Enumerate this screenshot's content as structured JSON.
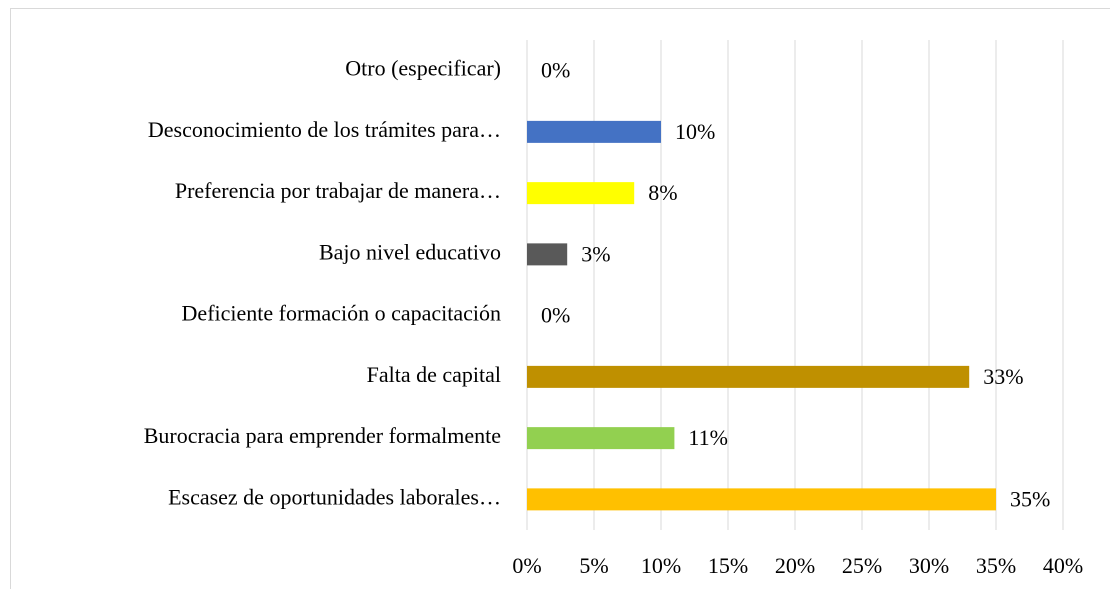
{
  "chart_data": {
    "type": "bar",
    "orientation": "horizontal",
    "categories": [
      "Otro (especificar)",
      "Desconocimiento de los trámites para…",
      "Preferencia por trabajar de manera…",
      "Bajo nivel educativo",
      "Deficiente formación o capacitación",
      "Falta de capital",
      "Burocracia para emprender formalmente",
      "Escasez de oportunidades laborales…"
    ],
    "values": [
      0,
      10,
      8,
      3,
      0,
      33,
      11,
      35
    ],
    "value_labels": [
      "0%",
      "10%",
      "8%",
      "3%",
      "0%",
      "33%",
      "11%",
      "35%"
    ],
    "colors": [
      null,
      "#4472c4",
      "#ffff00",
      "#595959",
      null,
      "#bf9000",
      "#92d050",
      "#ffc000"
    ],
    "xlim": [
      0,
      40
    ],
    "xticks": [
      {
        "value": 0,
        "label": "0%"
      },
      {
        "value": 5,
        "label": "5%"
      },
      {
        "value": 10,
        "label": "10%"
      },
      {
        "value": 15,
        "label": "15%"
      },
      {
        "value": 20,
        "label": "20%"
      },
      {
        "value": 25,
        "label": "25%"
      },
      {
        "value": 30,
        "label": "30%"
      },
      {
        "value": 35,
        "label": "35%"
      },
      {
        "value": 40,
        "label": "40%"
      }
    ],
    "grid": true
  }
}
